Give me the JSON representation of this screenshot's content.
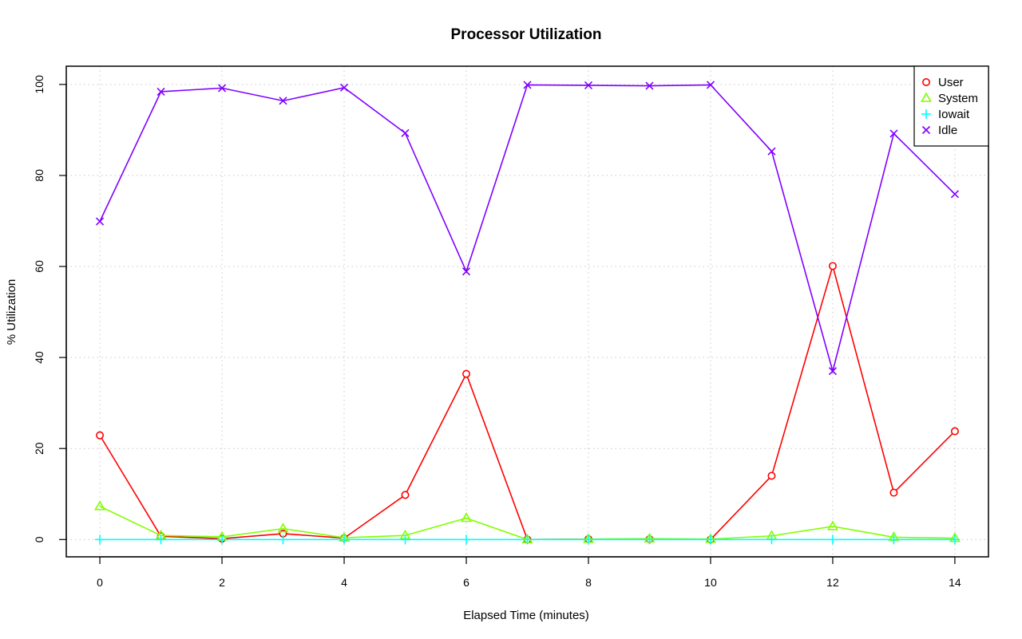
{
  "chart_data": {
    "type": "line",
    "title": "Processor Utilization",
    "xlabel": "Elapsed Time (minutes)",
    "ylabel": "% Utilization",
    "xlim": [
      -0.55,
      14.55
    ],
    "ylim": [
      -3.8,
      104
    ],
    "x_ticks": [
      0,
      2,
      4,
      6,
      8,
      10,
      12,
      14
    ],
    "y_ticks": [
      0,
      20,
      40,
      60,
      80,
      100
    ],
    "grid": true,
    "legend_position": "top-right",
    "x": [
      0,
      1,
      2,
      3,
      4,
      5,
      6,
      7,
      8,
      9,
      10,
      11,
      12,
      13,
      14
    ],
    "series": [
      {
        "name": "User",
        "color": "#ff0000",
        "marker": "circle",
        "values": [
          22.9,
          0.7,
          0.2,
          1.3,
          0.3,
          9.8,
          36.4,
          0.0,
          0.1,
          0.1,
          0.0,
          14.0,
          60.1,
          10.3,
          23.8
        ]
      },
      {
        "name": "System",
        "color": "#80ff00",
        "marker": "triangle",
        "values": [
          7.3,
          0.9,
          0.6,
          2.4,
          0.4,
          0.9,
          4.7,
          0.0,
          0.1,
          0.2,
          0.1,
          0.8,
          2.9,
          0.5,
          0.3
        ]
      },
      {
        "name": "Iowait",
        "color": "#00ffff",
        "marker": "plus",
        "values": [
          0,
          0,
          0,
          0,
          0,
          0,
          0,
          0,
          0,
          0,
          0,
          0,
          0,
          0,
          0
        ]
      },
      {
        "name": "Idle",
        "color": "#8000ff",
        "marker": "cross",
        "values": [
          69.9,
          98.4,
          99.2,
          96.4,
          99.3,
          89.3,
          58.9,
          99.9,
          99.8,
          99.7,
          99.9,
          85.3,
          37.0,
          89.2,
          75.9
        ]
      }
    ]
  }
}
